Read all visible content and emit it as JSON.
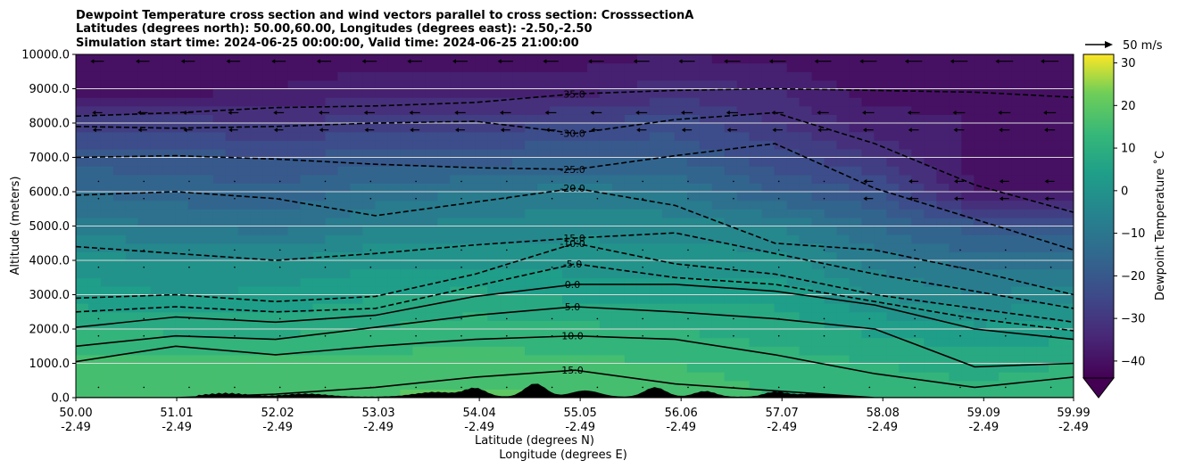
{
  "chart_data": {
    "type": "heatmap",
    "title_lines": [
      "Dewpoint Temperature cross section and wind vectors parallel to cross section: CrosssectionA",
      "Latitudes (degrees north): 50.00,60.00, Longitudes (degrees east): -2.50,-2.50",
      "Simulation start time: 2024-06-25 00:00:00, Valid time: 2024-06-25 21:00:00"
    ],
    "xlabel": "Latitude (degrees N)",
    "xlabel2": "Longitude (degrees E)",
    "ylabel": "Altitude (meters)",
    "xlim": [
      50.0,
      59.99
    ],
    "ylim": [
      0,
      10000
    ],
    "x_ticks": [
      50.0,
      51.01,
      52.02,
      53.03,
      54.04,
      55.05,
      56.06,
      57.07,
      58.08,
      59.09,
      59.99
    ],
    "x_tick_labels": [
      "50.00",
      "51.01",
      "52.02",
      "53.03",
      "54.04",
      "55.05",
      "56.06",
      "57.07",
      "58.08",
      "59.09",
      "59.99"
    ],
    "x_tick_labels2": [
      "-2.49",
      "-2.49",
      "-2.49",
      "-2.49",
      "-2.49",
      "-2.49",
      "-2.49",
      "-2.49",
      "-2.49",
      "-2.49",
      "-2.49"
    ],
    "y_ticks": [
      0,
      1000,
      2000,
      3000,
      4000,
      5000,
      6000,
      7000,
      8000,
      9000,
      10000
    ],
    "y_tick_labels": [
      "0.0",
      "1000.0",
      "2000.0",
      "3000.0",
      "4000.0",
      "5000.0",
      "6000.0",
      "7000.0",
      "8000.0",
      "9000.0",
      "10000.0"
    ],
    "grid": "horizontal",
    "colorbar": {
      "label": "Dewpoint Temperature $^\\circ$C",
      "label_text": "Dewpoint Temperature ˚C",
      "min": -44,
      "max": 32,
      "ticks": [
        -40,
        -30,
        -20,
        -10,
        0,
        10,
        20,
        30
      ],
      "tick_labels": [
        "−40",
        "−30",
        "−20",
        "−10",
        "0",
        "10",
        "20",
        "30"
      ],
      "colormap": "viridis",
      "extend": "min"
    },
    "quiver_key": {
      "label": "50 m/s",
      "value": 50
    },
    "profiles": [
      {
        "x": 50.0,
        "t": [
          18,
          16,
          10,
          4,
          0,
          -8,
          -14,
          -20,
          -28,
          -40,
          -42
        ]
      },
      {
        "x": 51.0,
        "t": [
          18,
          16,
          9,
          2,
          -2,
          -10,
          -16,
          -20,
          -28,
          -40,
          -42
        ]
      },
      {
        "x": 52.0,
        "t": [
          17,
          15,
          9,
          3,
          -2,
          -12,
          -17,
          -22,
          -30,
          -38,
          -40
        ]
      },
      {
        "x": 53.0,
        "t": [
          18,
          16,
          10,
          6,
          1,
          -6,
          -12,
          -20,
          -28,
          -36,
          -40
        ]
      },
      {
        "x": 54.0,
        "t": [
          19,
          16,
          12,
          7,
          1,
          -5,
          -10,
          -20,
          -28,
          -36,
          -40
        ]
      },
      {
        "x": 55.0,
        "t": [
          18,
          15,
          11,
          5,
          0,
          -3,
          -8,
          -18,
          -26,
          -36,
          -40
        ]
      },
      {
        "x": 56.0,
        "t": [
          17,
          14,
          10,
          5,
          0,
          -4,
          -10,
          -18,
          -24,
          -32,
          -38
        ]
      },
      {
        "x": 57.0,
        "t": [
          14,
          12,
          8,
          5,
          0,
          -6,
          -18,
          -24,
          -30,
          -34,
          -40
        ]
      },
      {
        "x": 58.0,
        "t": [
          12,
          10,
          5,
          -2,
          -8,
          -14,
          -22,
          -30,
          -36,
          -40,
          -42
        ]
      },
      {
        "x": 59.0,
        "t": [
          11,
          9,
          3,
          -6,
          -12,
          -20,
          -38,
          -40,
          -38,
          -40,
          -42
        ]
      },
      {
        "x": 59.99,
        "t": [
          12,
          10,
          4,
          -4,
          -12,
          -20,
          -38,
          -40,
          -38,
          -40,
          -42
        ]
      }
    ],
    "contour_labels": [
      "-35.0",
      "-30.0",
      "-25.0",
      "-20.0",
      "-15.0",
      "-10.0",
      "-5.0",
      "0.0",
      "5.0",
      "10.0",
      "15.0"
    ],
    "contour_values": [
      -35,
      -30,
      -25,
      -20,
      -15,
      -10,
      -5,
      0,
      5,
      10,
      15
    ],
    "contours": [
      {
        "level": -35,
        "x": [
          50.0,
          51.0,
          52.0,
          53.0,
          54.0,
          55.0,
          56.0,
          57.0,
          58.0,
          59.0,
          59.99
        ],
        "alt": [
          8200,
          8300,
          8450,
          8500,
          8600,
          8850,
          8950,
          9000,
          8950,
          8900,
          8750
        ]
      },
      {
        "level": -30,
        "x": [
          50.0,
          51.0,
          52.0,
          53.0,
          54.0,
          55.0,
          56.0,
          57.0,
          58.0,
          59.0,
          59.99
        ],
        "alt": [
          7900,
          7850,
          7900,
          8000,
          8050,
          7700,
          8100,
          8300,
          7400,
          6200,
          5400
        ]
      },
      {
        "level": -25,
        "x": [
          50.0,
          51.0,
          52.0,
          53.0,
          54.0,
          55.0,
          56.0,
          57.0,
          58.0,
          59.0,
          59.99
        ],
        "alt": [
          7000,
          7050,
          6950,
          6800,
          6700,
          6650,
          7050,
          7400,
          6100,
          5200,
          4300
        ]
      },
      {
        "level": -20,
        "x": [
          50.0,
          51.0,
          52.0,
          53.0,
          54.0,
          55.0,
          56.0,
          57.0,
          58.0,
          59.0,
          59.99
        ],
        "alt": [
          5900,
          6000,
          5800,
          5300,
          5700,
          6100,
          5600,
          4500,
          4300,
          3700,
          3000
        ]
      },
      {
        "level": -15,
        "x": [
          50.0,
          51.0,
          52.0,
          53.0,
          54.0,
          55.0,
          56.0,
          57.0,
          58.0,
          59.0,
          59.99
        ],
        "alt": [
          4400,
          4200,
          4000,
          4200,
          4450,
          4650,
          4800,
          4200,
          3600,
          3100,
          2600
        ]
      },
      {
        "level": -10,
        "x": [
          50.0,
          51.0,
          52.0,
          53.0,
          54.0,
          55.0,
          56.0,
          57.0,
          58.0,
          59.0,
          59.99
        ],
        "alt": [
          2900,
          3000,
          2800,
          2950,
          3600,
          4500,
          3900,
          3600,
          3000,
          2600,
          2200
        ]
      },
      {
        "level": -5,
        "x": [
          50.0,
          51.0,
          52.0,
          53.0,
          54.0,
          55.0,
          56.0,
          57.0,
          58.0,
          59.0,
          59.99
        ],
        "alt": [
          2500,
          2650,
          2500,
          2600,
          3250,
          3900,
          3500,
          3300,
          2800,
          2300,
          1950
        ]
      },
      {
        "level": 0,
        "x": [
          50.0,
          51.0,
          52.0,
          53.0,
          54.0,
          55.0,
          56.0,
          57.0,
          58.0,
          59.0,
          59.99
        ],
        "alt": [
          2050,
          2350,
          2200,
          2400,
          2950,
          3300,
          3300,
          3100,
          2700,
          2000,
          1700
        ]
      },
      {
        "level": 5,
        "x": [
          50.0,
          51.0,
          52.0,
          53.0,
          54.0,
          55.0,
          56.0,
          57.0,
          58.0,
          59.0,
          59.99
        ],
        "alt": [
          1500,
          1800,
          1700,
          2050,
          2400,
          2650,
          2500,
          2300,
          2000,
          900,
          1000
        ]
      },
      {
        "level": 10,
        "x": [
          50.0,
          51.0,
          52.0,
          53.0,
          54.0,
          55.0,
          56.0,
          57.0,
          58.0,
          59.0,
          59.99
        ],
        "alt": [
          1050,
          1500,
          1250,
          1500,
          1700,
          1800,
          1700,
          1250,
          700,
          300,
          600
        ]
      },
      {
        "level": 15,
        "x": [
          50.0,
          51.0,
          52.0,
          53.0,
          54.0,
          55.0,
          56.0,
          57.0,
          58.0,
          59.0,
          59.99
        ],
        "alt": [
          0,
          0,
          100,
          300,
          600,
          800,
          400,
          200,
          0,
          0,
          0
        ]
      }
    ],
    "terrain_peaks": [
      {
        "x": 51.5,
        "h": 120,
        "w": 0.3
      },
      {
        "x": 52.3,
        "h": 100,
        "w": 0.3
      },
      {
        "x": 53.6,
        "h": 150,
        "w": 0.3
      },
      {
        "x": 54.0,
        "h": 260,
        "w": 0.15
      },
      {
        "x": 54.6,
        "h": 420,
        "w": 0.15
      },
      {
        "x": 55.1,
        "h": 200,
        "w": 0.2
      },
      {
        "x": 55.8,
        "h": 300,
        "w": 0.15
      },
      {
        "x": 56.3,
        "h": 180,
        "w": 0.15
      },
      {
        "x": 57.0,
        "h": 150,
        "w": 0.15
      },
      {
        "x": 57.4,
        "h": 100,
        "w": 0.3
      }
    ],
    "wind_vector_note": "arrows at grid nodes; strongest westward flow at upper levels"
  }
}
